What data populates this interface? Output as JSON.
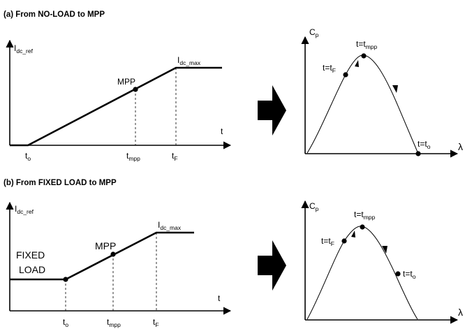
{
  "panel_a": {
    "title": "(a) From NO-LOAD to MPP",
    "left": {
      "y_label": "I",
      "y_label_sub": "dc_ref",
      "x_label": "t",
      "point_label": "MPP",
      "max_label": "I",
      "max_label_sub": "dc_max",
      "tick_to": "t",
      "tick_to_sub": "o",
      "tick_tmpp": "t",
      "tick_tmpp_sub": "mpp",
      "tick_tf": "t",
      "tick_tf_sub": "F"
    },
    "right": {
      "y_label": "C",
      "y_label_sub": "p",
      "x_label": "λ",
      "label_mpp": "t=t",
      "label_mpp_sub": "mpp",
      "label_f": "t=t",
      "label_f_sub": "F",
      "label_o": "t=t",
      "label_o_sub": "o"
    }
  },
  "panel_b": {
    "title": "(b) From FIXED LOAD to MPP",
    "left": {
      "y_label": "I",
      "y_label_sub": "dc_ref",
      "x_label": "t",
      "fixed_label_1": "FIXED",
      "fixed_label_2": "LOAD",
      "point_label": "MPP",
      "max_label": "I",
      "max_label_sub": "dc_max",
      "tick_to": "t",
      "tick_to_sub": "o",
      "tick_tmpp": "t",
      "tick_tmpp_sub": "mpp",
      "tick_tf": "t",
      "tick_tf_sub": "F"
    },
    "right": {
      "y_label": "C",
      "y_label_sub": "p",
      "x_label": "λ",
      "label_mpp": "t=t",
      "label_mpp_sub": "mpp",
      "label_f": "t=t",
      "label_f_sub": "F",
      "label_o": "t=t",
      "label_o_sub": "o"
    }
  },
  "colors": {
    "ink": "#000000",
    "background": "#ffffff"
  }
}
